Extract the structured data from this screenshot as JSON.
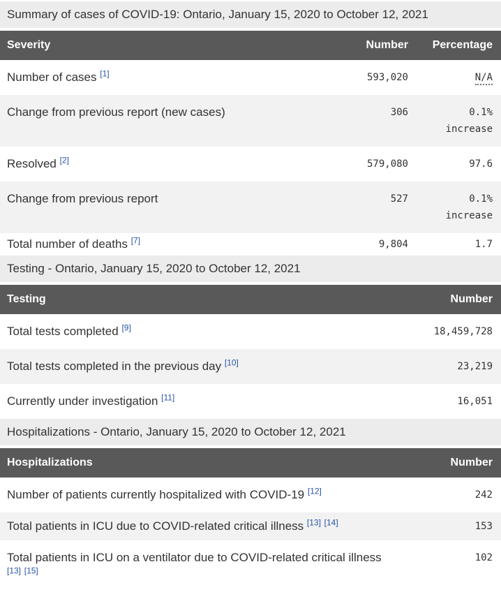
{
  "colors": {
    "header_bg": "#595959",
    "header_text": "#ffffff",
    "caption_bg": "#ececec",
    "zebra_bg": "#f2f2f2",
    "link": "#2a55a4",
    "text": "#333333"
  },
  "tables": [
    {
      "caption": "Summary of cases of COVID-19: Ontario, January 15, 2020 to October 12, 2021",
      "columns": [
        "Severity",
        "Number",
        "Percentage"
      ],
      "rows": [
        {
          "label": "Number of cases",
          "footnotes": [
            "[1]"
          ],
          "number": "593,020",
          "percentage": "N/A",
          "abbr": true
        },
        {
          "label": "Change from previous report (new cases)",
          "footnotes": [],
          "number": "306",
          "percentage": "0.1%\nincrease"
        },
        {
          "label": "Resolved",
          "footnotes": [
            "[2]"
          ],
          "number": "579,080",
          "percentage": "97.6"
        },
        {
          "label": "Change from previous report",
          "footnotes": [],
          "number": "527",
          "percentage": "0.1%\nincrease"
        },
        {
          "label": "Total number of deaths",
          "footnotes": [
            "[7]"
          ],
          "number": "9,804",
          "percentage": "1.7"
        }
      ]
    },
    {
      "caption": "Testing - Ontario, January 15, 2020 to October 12, 2021",
      "columns": [
        "Testing",
        "Number"
      ],
      "rows": [
        {
          "label": "Total tests completed",
          "footnotes": [
            "[9]"
          ],
          "number": "18,459,728"
        },
        {
          "label": "Total tests completed in the previous day",
          "footnotes": [
            "[10]"
          ],
          "number": "23,219"
        },
        {
          "label": "Currently under investigation",
          "footnotes": [
            "[11]"
          ],
          "number": "16,051"
        }
      ]
    },
    {
      "caption": "Hospitalizations - Ontario, January 15, 2020 to October 12, 2021",
      "columns": [
        "Hospitalizations",
        "Number"
      ],
      "rows": [
        {
          "label": "Number of patients currently hospitalized with COVID-19",
          "footnotes": [
            "[12]"
          ],
          "number": "242"
        },
        {
          "label": "Total patients in ICU due to COVID-related critical illness",
          "footnotes": [
            "[13]",
            "[14]"
          ],
          "number": "153"
        },
        {
          "label": "Total patients in ICU on a ventilator due to COVID-related critical illness",
          "footnotes": [
            "[13]",
            "[15]"
          ],
          "number": "102"
        }
      ]
    }
  ]
}
